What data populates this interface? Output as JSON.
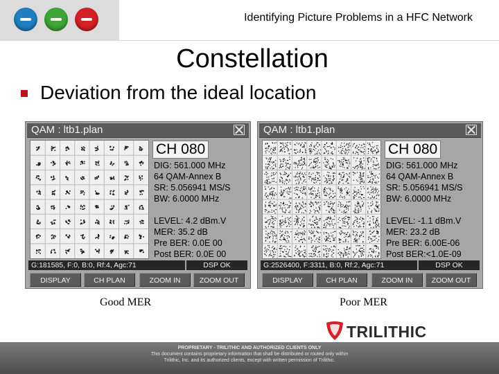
{
  "header": {
    "title": "Identifying Picture Problems in a HFC Network",
    "logos": [
      {
        "icon": "blue-plug-icon",
        "color": "#1f7fc0"
      },
      {
        "icon": "green-plug-icon",
        "color": "#3fa535"
      },
      {
        "icon": "red-connector-icon",
        "color": "#d42027"
      }
    ]
  },
  "slide": {
    "title": "Constellation",
    "bullet": "Deviation from the ideal location",
    "bullet_color": "#c0111e"
  },
  "panels": [
    {
      "title": "QAM : ltb1.plan",
      "channel": "CH 080",
      "dig": "DIG: 561.000 MHz",
      "modulation": "64 QAM-Annex B",
      "sr": "SR: 5.056941 MS/S",
      "bw": "BW: 6.0000 MHz",
      "level": "LEVEL:  4.2 dBm.V",
      "mer": "MER: 35.2 dB",
      "pre_ber": "Pre BER: 0.0E 00",
      "post_ber": "Post BER: 0.0E 00",
      "status": "G:181585, F:0, B:0, Rf:4, Agc:71",
      "dsp": "DSP OK",
      "buttons": [
        "DISPLAY",
        "CH PLAN",
        "ZOOM IN",
        "ZOOM OUT"
      ],
      "caption": "Good MER",
      "constellation_quality": "tight"
    },
    {
      "title": "QAM : ltb1.plan",
      "channel": "CH 080",
      "dig": "DIG: 561.000 MHz",
      "modulation": "64 QAM-Annex B",
      "sr": "SR: 5.056941 MS/S",
      "bw": "BW: 6.0000 MHz",
      "level": "LEVEL: -1.1 dBm.V",
      "mer": "MER: 23.2 dB",
      "pre_ber": "Pre BER: 6.00E-06",
      "post_ber": "Post BER:<1.0E-09",
      "status": "G:2526400, F:3311, B:0, Rf:2, Agc:71",
      "dsp": "DSP OK",
      "buttons": [
        "DISPLAY",
        "CH PLAN",
        "ZOOM IN",
        "ZOOM OUT"
      ],
      "caption": "Poor MER",
      "constellation_quality": "scattered"
    }
  ],
  "brand": {
    "name": "TRILITHIC",
    "accent": "#d42027"
  },
  "footer": {
    "line1": "PROPRIETARY - TRILITHIC AND AUTHORIZED CLIENTS ONLY",
    "line2": "This document contains proprietary information that shall be distributed or routed only within",
    "line3": "Trilithic, Inc. and its authorized clients, except with written permission of Trilithic."
  }
}
